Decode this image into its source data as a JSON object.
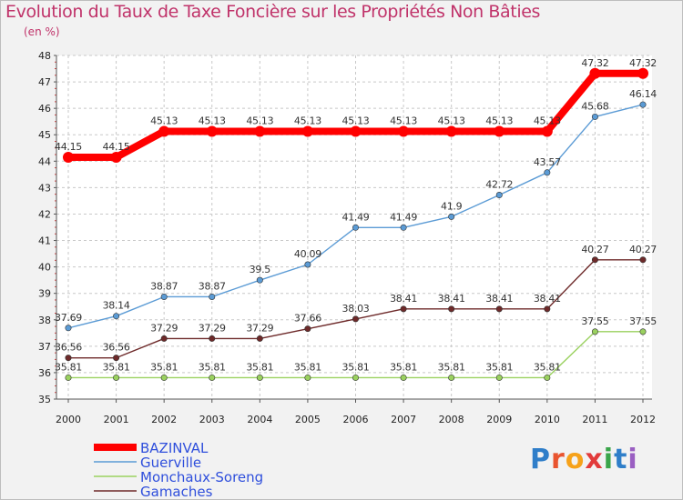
{
  "chart_data": {
    "type": "line",
    "title": "Evolution du Taux de Taxe Foncière sur les Propriétés Non Bâties",
    "ylabel": "(en %)",
    "xlabel": "",
    "ylim": [
      35,
      48
    ],
    "yticks": [
      "35",
      "36",
      "37",
      "38",
      "39",
      "40",
      "41",
      "42",
      "43",
      "44",
      "45",
      "46",
      "47",
      "48"
    ],
    "categories": [
      "2000",
      "2001",
      "2002",
      "2003",
      "2004",
      "2005",
      "2006",
      "2007",
      "2008",
      "2009",
      "2010",
      "2011",
      "2012"
    ],
    "series": [
      {
        "name": "BAZINVAL",
        "color": "#ff0000",
        "values": [
          44.15,
          44.15,
          45.13,
          45.13,
          45.13,
          45.13,
          45.13,
          45.13,
          45.13,
          45.13,
          45.13,
          47.32,
          47.32
        ],
        "labels": [
          "44.15",
          "44.15",
          "45.13",
          "45.13",
          "45.13",
          "45.13",
          "45.13",
          "45.13",
          "45.13",
          "45.13",
          "45.13",
          "47.32",
          "47.32"
        ]
      },
      {
        "name": "Guerville",
        "color": "#5b9bd5",
        "values": [
          37.69,
          38.14,
          38.87,
          38.87,
          39.5,
          40.09,
          41.49,
          41.49,
          41.9,
          42.72,
          43.57,
          45.68,
          46.14
        ],
        "labels": [
          "37.69",
          "38.14",
          "38.87",
          "38.87",
          "39.5",
          "40.09",
          "41.49",
          "41.49",
          "41.9",
          "42.72",
          "43.57",
          "45.68",
          "46.14"
        ]
      },
      {
        "name": "Monchaux-Soreng",
        "color": "#9ad15f",
        "values": [
          35.81,
          35.81,
          35.81,
          35.81,
          35.81,
          35.81,
          35.81,
          35.81,
          35.81,
          35.81,
          35.81,
          37.55,
          37.55
        ],
        "labels": [
          "35.81",
          "35.81",
          "35.81",
          "35.81",
          "35.81",
          "35.81",
          "35.81",
          "35.81",
          "35.81",
          "35.81",
          "35.81",
          "37.55",
          "37.55"
        ]
      },
      {
        "name": "Gamaches",
        "color": "#6e2a2a",
        "values": [
          36.56,
          36.56,
          37.29,
          37.29,
          37.29,
          37.66,
          38.03,
          38.41,
          38.41,
          38.41,
          38.41,
          40.27,
          40.27
        ],
        "labels": [
          "36.56",
          "36.56",
          "37.29",
          "37.29",
          "37.29",
          "37.66",
          "38.03",
          "38.41",
          "38.41",
          "38.41",
          "38.41",
          "40.27",
          "40.27"
        ]
      }
    ],
    "legend_position": "bottom-left"
  },
  "logo": {
    "text": "Proxiti",
    "letter_colors": [
      "#2f7ec9",
      "#e9542f",
      "#f6a21a",
      "#e23b3b",
      "#3aa54a",
      "#2f7ec9",
      "#9a5fc2"
    ]
  }
}
